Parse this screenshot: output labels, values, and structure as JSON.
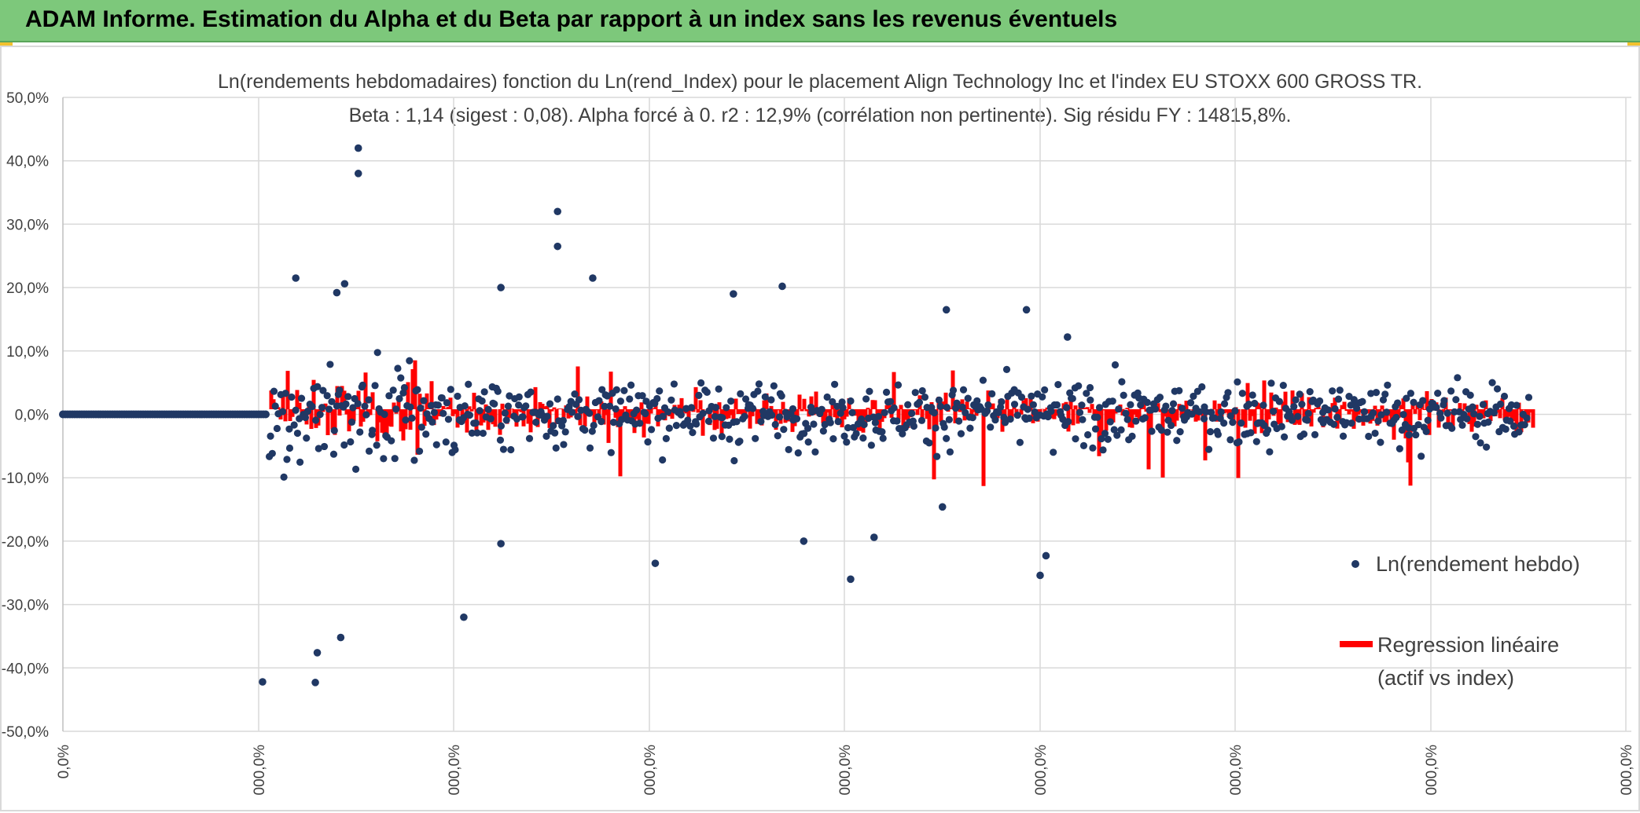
{
  "banner": {
    "title": "ADAM Informe. Estimation du Alpha et du Beta par rapport à un index sans les revenus éventuels"
  },
  "colors": {
    "banner": "#7dc87b",
    "points": "#203864",
    "regression": "#ff0000",
    "grid": "#d9d9d9",
    "text": "#404040"
  },
  "chart_data": {
    "type": "scatter",
    "title": "Ln(rendements hebdomadaires) fonction du Ln(rend_Index) pour le placement Align Technology Inc et l'index EU STOXX 600 GROSS TR.",
    "subtitle": "Beta : 1,14 (sigest : 0,08). Alpha forcé à 0. r2 : 12,9% (corrélation non pertinente). Sig résidu FY : 14815,8%.",
    "xlabel": "",
    "ylabel": "",
    "ylim": [
      -50,
      50
    ],
    "y_ticks": [
      "50,0%",
      "40,0%",
      "30,0%",
      "20,0%",
      "10,0%",
      "0,0%",
      "-10,0%",
      "-20,0%",
      "-30,0%",
      "-40,0%",
      "-50,0%"
    ],
    "x_ticks": [
      "0,0%",
      "000,0%",
      "000,0%",
      "000,0%",
      "000,0%",
      "000,0%",
      "000,0%",
      "000,0%",
      "000,0%"
    ],
    "grid": true,
    "legend_position": "right",
    "series": [
      {
        "name": "Ln(rendement hebdo)",
        "marker": "dot",
        "notable_points": [
          {
            "x": 0.51,
            "y": 42.0
          },
          {
            "x": 0.51,
            "y": 38.0
          },
          {
            "x": 1.53,
            "y": 32.0
          },
          {
            "x": 1.53,
            "y": 26.5
          },
          {
            "x": 0.19,
            "y": 21.5
          },
          {
            "x": 0.44,
            "y": 20.6
          },
          {
            "x": 1.24,
            "y": 20.0
          },
          {
            "x": 1.71,
            "y": 21.5
          },
          {
            "x": 2.68,
            "y": 20.2
          },
          {
            "x": 0.4,
            "y": 19.2
          },
          {
            "x": 2.43,
            "y": 19.0
          },
          {
            "x": 3.93,
            "y": 16.5
          },
          {
            "x": 3.52,
            "y": 16.5
          },
          {
            "x": 4.14,
            "y": 12.2
          },
          {
            "x": 0.02,
            "y": -42.2
          },
          {
            "x": 0.29,
            "y": -42.3
          },
          {
            "x": 0.3,
            "y": -37.6
          },
          {
            "x": 0.42,
            "y": -35.2
          },
          {
            "x": 1.05,
            "y": -32.0
          },
          {
            "x": 1.24,
            "y": -20.4
          },
          {
            "x": 2.79,
            "y": -20.0
          },
          {
            "x": 2.03,
            "y": -23.5
          },
          {
            "x": 3.03,
            "y": -26.0
          },
          {
            "x": 4.0,
            "y": -25.4
          },
          {
            "x": 3.15,
            "y": -19.4
          },
          {
            "x": 4.03,
            "y": -22.3
          },
          {
            "x": 3.5,
            "y": -14.6
          }
        ],
        "bulk_range_percent": [
          -10,
          10
        ]
      },
      {
        "name": "Regression linéaire\n(actif vs index)",
        "marker": "line",
        "beta": 1.14,
        "alpha": 0,
        "band_range_percent": [
          -12,
          10
        ]
      }
    ]
  }
}
